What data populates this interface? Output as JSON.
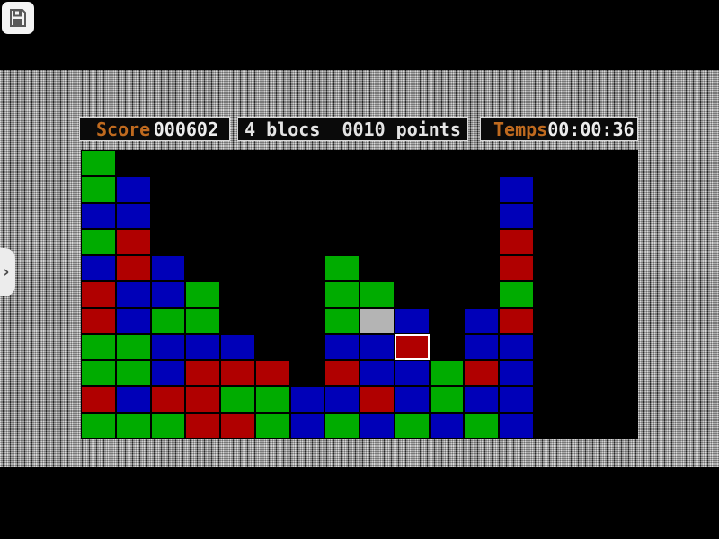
{
  "hud": {
    "score_label": "Score",
    "score_value": "000602",
    "blocks_info": "4 blocs  0010 points",
    "time_label": "Temps",
    "time_value": "00:00:36"
  },
  "drawer": {
    "chevron": "›"
  },
  "colors": {
    "hud_label_orange": "#bf6a1f",
    "hud_value_white": "#ededed",
    "board_background": "#000000",
    "wallpaper_grey": "#959595"
  },
  "board": {
    "rows": 11,
    "cols": 16,
    "legend": {
      "G": "#00ac00",
      "B": "#0000b8",
      "R": "#b00000",
      "S": "#b4b4b4"
    },
    "grid": [
      "G...............",
      "GB..........B...",
      "BB..........B...",
      "GR..........R...",
      "BRB....G....R...",
      "RBBG...GG...G...",
      "RBGG...GSB.BR...",
      "GGBBB..BBR.BB...",
      "GGBRRR.RBBGRB...",
      "RBRRGGBBRBGBB...",
      "GGGRRGBGBGBGB..."
    ],
    "selected": {
      "row": 7,
      "col": 9
    }
  }
}
